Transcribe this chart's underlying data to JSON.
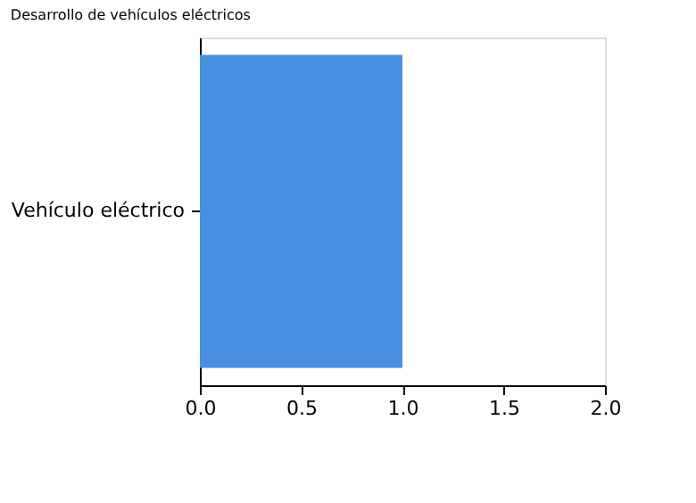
{
  "chart_data": {
    "type": "bar",
    "title": "Desarrollo de vehículos eléctricos",
    "orientation": "horizontal",
    "categories": [
      "Vehículo eléctrico"
    ],
    "values": [
      1.0
    ],
    "color": "#4a90e2",
    "xlim": [
      0,
      2
    ],
    "xticks": [
      {
        "value": 0,
        "label": "0.0"
      },
      0.5,
      {
        "value": 1,
        "label": "1.0"
      },
      1.5,
      {
        "value": 2,
        "label": "2.0"
      }
    ]
  }
}
